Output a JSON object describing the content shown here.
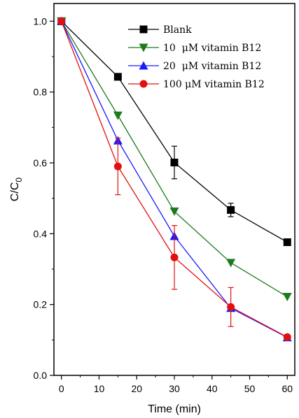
{
  "chart_data": {
    "type": "line",
    "xlabel": "Time (min)",
    "ylabel": {
      "main": "C/C",
      "sub": "0"
    },
    "xlim": [
      -2,
      62
    ],
    "ylim": [
      0.0,
      1.05
    ],
    "xticks": [
      0,
      10,
      20,
      30,
      40,
      50,
      60
    ],
    "xtick_labels": [
      "0",
      "10",
      "20",
      "30",
      "40",
      "50",
      "60"
    ],
    "yticks": [
      0.0,
      0.2,
      0.4,
      0.6,
      0.8,
      1.0
    ],
    "ytick_labels": [
      "0.0",
      "0.2",
      "0.4",
      "0.6",
      "0.8",
      "1.0"
    ],
    "legend_position": "top-right",
    "series": [
      {
        "name": "Blank",
        "color": "#000000",
        "marker": "square",
        "x": [
          0,
          15,
          30,
          45,
          60
        ],
        "y": [
          1.0,
          0.843,
          0.601,
          0.467,
          0.376
        ],
        "err": [
          0,
          0,
          0.046,
          0.019,
          0
        ]
      },
      {
        "name": "10  μM vitamin B12",
        "color": "#1e7a1e",
        "marker": "triangle-down",
        "x": [
          0,
          15,
          30,
          45,
          60
        ],
        "y": [
          1.0,
          0.734,
          0.463,
          0.318,
          0.222
        ],
        "err": [
          0,
          0,
          0,
          0,
          0
        ]
      },
      {
        "name": "20  μM vitamin B12",
        "color": "#1a1aff",
        "marker": "triangle-up",
        "x": [
          0,
          15,
          30,
          45,
          60
        ],
        "y": [
          1.0,
          0.663,
          0.393,
          0.19,
          0.107
        ],
        "err": [
          0,
          0,
          0,
          0,
          0
        ]
      },
      {
        "name": "100 μM vitamin B12",
        "color": "#e01010",
        "marker": "circle",
        "x": [
          0,
          15,
          30,
          45,
          60
        ],
        "y": [
          1.0,
          0.59,
          0.333,
          0.193,
          0.108
        ],
        "err": [
          0,
          0.08,
          0.09,
          0.055,
          0
        ]
      }
    ]
  }
}
